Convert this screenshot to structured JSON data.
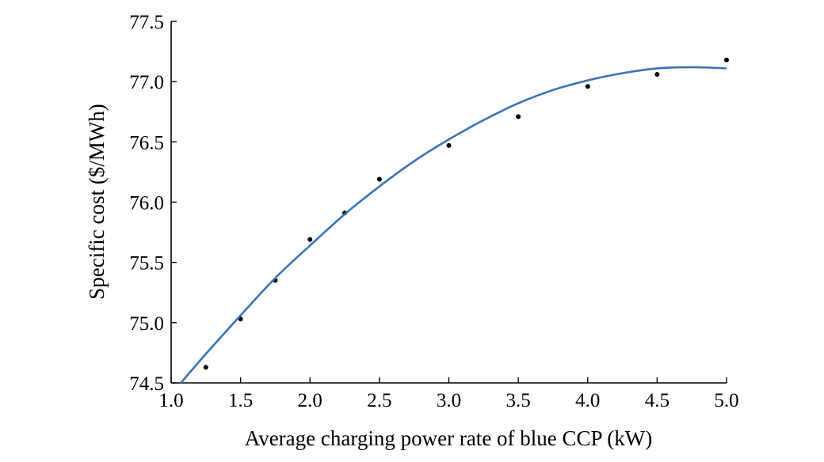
{
  "chart_data": {
    "type": "scatter",
    "title": "",
    "xlabel": "Average charging power rate of blue CCP (kW)",
    "ylabel": "Specific cost ($/MWh)",
    "xlim": [
      1.0,
      5.0
    ],
    "ylim": [
      74.5,
      77.5
    ],
    "xticks": [
      "1.0",
      "1.5",
      "2.0",
      "2.5",
      "3.0",
      "3.5",
      "4.0",
      "4.5",
      "5.0"
    ],
    "yticks": [
      "74.5",
      "75.0",
      "75.5",
      "76.0",
      "76.5",
      "77.0",
      "77.5"
    ],
    "grid": false,
    "series": [
      {
        "kind": "points",
        "color": "#000000",
        "x": [
          1.25,
          1.5,
          1.75,
          2.0,
          2.25,
          2.5,
          3.0,
          3.5,
          4.0,
          4.5,
          5.0
        ],
        "y": [
          74.63,
          75.03,
          75.35,
          75.69,
          75.91,
          76.19,
          76.47,
          76.71,
          76.96,
          77.06,
          77.18
        ]
      },
      {
        "kind": "fit-line",
        "color": "#3a73b8",
        "x": [
          1.07,
          1.25,
          1.5,
          1.75,
          2.0,
          2.25,
          2.5,
          2.75,
          3.0,
          3.25,
          3.5,
          3.75,
          4.0,
          4.25,
          4.5,
          4.75,
          5.0
        ],
        "y": [
          74.5,
          74.74,
          75.06,
          75.37,
          75.64,
          75.9,
          76.13,
          76.34,
          76.52,
          76.68,
          76.82,
          76.93,
          77.01,
          77.07,
          77.11,
          77.12,
          77.11
        ]
      }
    ]
  }
}
